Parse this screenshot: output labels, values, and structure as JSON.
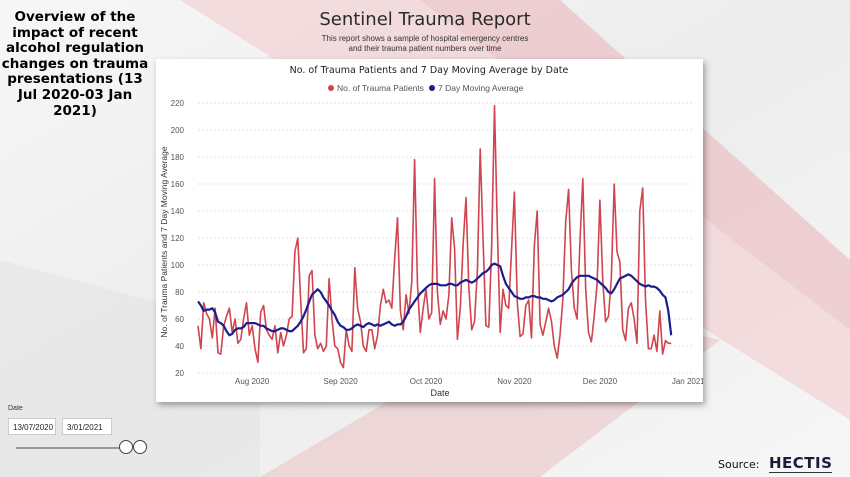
{
  "side": {
    "title": "Overview of the impact of recent alcohol regulation changes on trauma presentations (13 Jul 2020-03 Jan 2021)"
  },
  "report": {
    "title": "Sentinel Trauma Report",
    "subtitle_line1": "This report shows a sample of hospital emergency centres",
    "subtitle_line2": "and their trauma patient numbers over time"
  },
  "slicer": {
    "label": "Date",
    "start": "13/07/2020",
    "end": "3/01/2021"
  },
  "source": {
    "label": "Source:",
    "logo": "HECTIS"
  },
  "colors": {
    "patients": "#d0444f",
    "moving_avg": "#1a1f8c"
  },
  "chart_data": {
    "type": "line",
    "title": "No. of Trauma Patients and 7 Day Moving Average by Date",
    "xlabel": "Date",
    "ylabel": "No. of Trauma Patients and 7 Day Moving Average",
    "ylim": [
      20,
      220
    ],
    "yticks": [
      20,
      40,
      60,
      80,
      100,
      120,
      140,
      160,
      180,
      200,
      220
    ],
    "x_start": "2020-07-13",
    "x_end": "2021-01-03",
    "xticks": [
      {
        "label": "Aug 2020",
        "date": "2020-08-01"
      },
      {
        "label": "Sep 2020",
        "date": "2020-09-01"
      },
      {
        "label": "Oct 2020",
        "date": "2020-10-01"
      },
      {
        "label": "Nov 2020",
        "date": "2020-11-01"
      },
      {
        "label": "Dec 2020",
        "date": "2020-12-01"
      },
      {
        "label": "Jan 2021",
        "date": "2021-01-01"
      }
    ],
    "grid": true,
    "legend": "top-center",
    "series": [
      {
        "name": "No. of Trauma Patients",
        "values": [
          55,
          38,
          72,
          64,
          60,
          46,
          68,
          35,
          34,
          55,
          62,
          68,
          50,
          60,
          42,
          45,
          60,
          72,
          48,
          55,
          38,
          28,
          65,
          70,
          52,
          48,
          45,
          55,
          35,
          50,
          40,
          48,
          60,
          62,
          110,
          120,
          75,
          35,
          38,
          92,
          96,
          48,
          38,
          42,
          36,
          40,
          90,
          60,
          40,
          38,
          28,
          24,
          52,
          40,
          36,
          98,
          68,
          58,
          40,
          36,
          52,
          52,
          38,
          48,
          70,
          82,
          72,
          74,
          68,
          105,
          135,
          66,
          52,
          78,
          64,
          88,
          178,
          85,
          50,
          68,
          82,
          60,
          65,
          164,
          80,
          56,
          66,
          60,
          78,
          135,
          112,
          45,
          68,
          115,
          150,
          84,
          52,
          58,
          96,
          186,
          118,
          55,
          54,
          112,
          218,
          128,
          50,
          82,
          70,
          68,
          112,
          154,
          72,
          47,
          49,
          70,
          74,
          46,
          115,
          140,
          56,
          48,
          58,
          68,
          58,
          40,
          31,
          48,
          75,
          132,
          156,
          96,
          68,
          60,
          118,
          164,
          82,
          50,
          43,
          62,
          86,
          148,
          88,
          58,
          62,
          90,
          160,
          110,
          102,
          52,
          44,
          68,
          72,
          60,
          42,
          140,
          157,
          74,
          38,
          38,
          48,
          36,
          66,
          34,
          44,
          42,
          42
        ]
      },
      {
        "name": "7 Day Moving Average",
        "values": [
          73,
          70,
          66,
          67,
          67,
          68,
          65,
          58,
          57,
          55,
          51,
          48,
          49,
          52,
          53,
          53,
          54,
          57,
          57,
          57,
          57,
          56,
          55,
          55,
          53,
          52,
          51,
          51,
          52,
          53,
          53,
          52,
          51,
          51,
          53,
          55,
          58,
          62,
          67,
          73,
          78,
          80,
          82,
          80,
          76,
          73,
          70,
          66,
          63,
          58,
          55,
          54,
          52,
          52,
          53,
          55,
          56,
          55,
          54,
          56,
          57,
          56,
          55,
          56,
          55,
          56,
          57,
          58,
          56,
          55,
          56,
          56,
          58,
          62,
          67,
          70,
          73,
          76,
          79,
          81,
          83,
          85,
          86,
          86,
          86,
          85,
          85,
          85,
          86,
          86,
          85,
          85,
          87,
          88,
          89,
          88,
          87,
          88,
          90,
          92,
          94,
          95,
          97,
          100,
          101,
          100,
          99,
          92,
          86,
          83,
          80,
          77,
          76,
          75,
          75,
          76,
          76,
          77,
          77,
          76,
          76,
          75,
          75,
          74,
          73,
          74,
          76,
          77,
          78,
          80,
          82,
          86,
          89,
          91,
          92,
          92,
          92,
          92,
          91,
          90,
          89,
          87,
          85,
          83,
          80,
          79,
          82,
          86,
          90,
          91,
          92,
          93,
          92,
          90,
          88,
          86,
          85,
          84,
          85,
          84,
          84,
          83,
          81,
          78,
          76,
          66,
          48
        ]
      }
    ]
  }
}
